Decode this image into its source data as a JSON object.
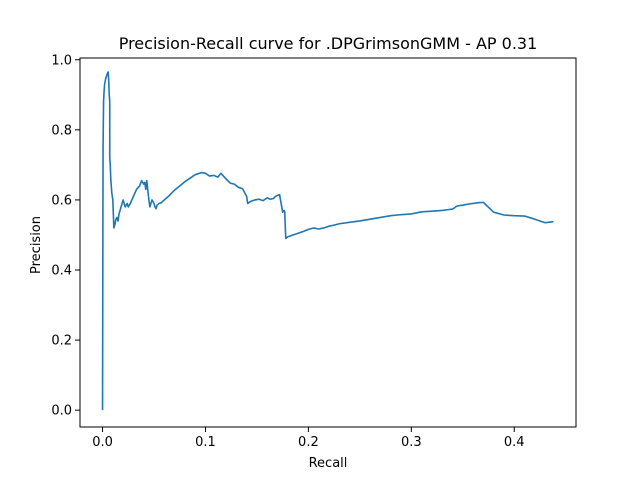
{
  "chart_data": {
    "type": "line",
    "title": "Precision-Recall curve for .DPGrimsonGMM - AP 0.31",
    "xlabel": "Recall",
    "ylabel": "Precision",
    "xlim": [
      -0.0219,
      0.46
    ],
    "ylim": [
      -0.048,
      1.005
    ],
    "xticks": [
      0.0,
      0.1,
      0.2,
      0.3,
      0.4
    ],
    "xtick_labels": [
      "0.0",
      "0.1",
      "0.2",
      "0.3",
      "0.4"
    ],
    "yticks": [
      0.0,
      0.2,
      0.4,
      0.6,
      0.8,
      1.0
    ],
    "ytick_labels": [
      "0.0",
      "0.2",
      "0.4",
      "0.6",
      "0.8",
      "1.0"
    ],
    "grid": false,
    "line_color": "#1f77b4",
    "series": [
      {
        "x": [
          0.0,
          0.0005,
          0.001,
          0.0015,
          0.002,
          0.003,
          0.004,
          0.005,
          0.0055,
          0.006,
          0.0065,
          0.007,
          0.007,
          0.0075,
          0.008,
          0.009,
          0.01,
          0.011,
          0.012,
          0.013,
          0.014,
          0.015,
          0.016,
          0.017,
          0.018,
          0.02,
          0.022,
          0.023,
          0.024,
          0.025,
          0.027,
          0.03,
          0.033,
          0.036,
          0.038,
          0.04,
          0.041,
          0.042,
          0.043,
          0.045,
          0.046,
          0.048,
          0.05,
          0.051,
          0.052,
          0.053,
          0.055,
          0.057,
          0.06,
          0.064,
          0.07,
          0.08,
          0.09,
          0.096,
          0.1,
          0.104,
          0.108,
          0.112,
          0.115,
          0.12,
          0.124,
          0.128,
          0.132,
          0.136,
          0.14,
          0.141,
          0.144,
          0.148,
          0.152,
          0.156,
          0.16,
          0.163,
          0.166,
          0.168,
          0.17,
          0.172,
          0.175,
          0.1765,
          0.177,
          0.178,
          0.178,
          0.18,
          0.185,
          0.19,
          0.195,
          0.2,
          0.205,
          0.21,
          0.215,
          0.22,
          0.225,
          0.23,
          0.24,
          0.25,
          0.26,
          0.27,
          0.28,
          0.29,
          0.3,
          0.31,
          0.32,
          0.33,
          0.335,
          0.34,
          0.341,
          0.343,
          0.345,
          0.35,
          0.355,
          0.36,
          0.365,
          0.37,
          0.38,
          0.39,
          0.4,
          0.41,
          0.42,
          0.43,
          0.438
        ],
        "y": [
          0.0,
          0.75,
          0.88,
          0.91,
          0.93,
          0.945,
          0.955,
          0.963,
          0.965,
          0.94,
          0.9,
          0.88,
          0.72,
          0.7,
          0.66,
          0.62,
          0.6,
          0.52,
          0.53,
          0.545,
          0.55,
          0.54,
          0.56,
          0.57,
          0.58,
          0.6,
          0.58,
          0.585,
          0.59,
          0.58,
          0.59,
          0.61,
          0.63,
          0.64,
          0.655,
          0.645,
          0.65,
          0.63,
          0.655,
          0.6,
          0.58,
          0.6,
          0.59,
          0.58,
          0.575,
          0.585,
          0.59,
          0.592,
          0.6,
          0.61,
          0.628,
          0.652,
          0.672,
          0.678,
          0.676,
          0.668,
          0.67,
          0.665,
          0.676,
          0.66,
          0.648,
          0.645,
          0.636,
          0.632,
          0.61,
          0.59,
          0.596,
          0.6,
          0.602,
          0.598,
          0.606,
          0.602,
          0.604,
          0.61,
          0.613,
          0.615,
          0.565,
          0.57,
          0.565,
          0.49,
          0.49,
          0.495,
          0.5,
          0.505,
          0.51,
          0.516,
          0.52,
          0.517,
          0.52,
          0.525,
          0.528,
          0.532,
          0.536,
          0.54,
          0.545,
          0.55,
          0.555,
          0.558,
          0.56,
          0.566,
          0.568,
          0.57,
          0.572,
          0.574,
          0.575,
          0.58,
          0.583,
          0.585,
          0.588,
          0.59,
          0.592,
          0.593,
          0.565,
          0.557,
          0.555,
          0.554,
          0.545,
          0.535,
          0.538
        ]
      }
    ]
  }
}
